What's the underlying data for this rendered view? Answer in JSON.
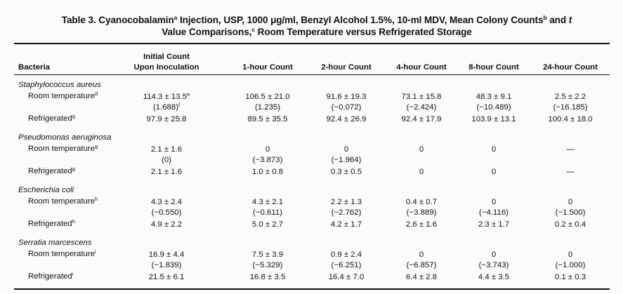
{
  "table": {
    "title_line1_a": "Table 3. Cyanocobalamin",
    "title_sup_a": "a",
    "title_line1_b": " Injection, USP, 1000 μg/ml, Benzyl Alcohol 1.5%, 10-ml MDV, Mean Colony Counts",
    "title_sup_b": "b",
    "title_line1_c": " and ",
    "title_line1_t": "t",
    "title_line2_a": "Value Comparisons,",
    "title_sup_c": "c",
    "title_line2_b": " Room Temperature  versus Refrigerated Storage",
    "headers": {
      "bacteria": "Bacteria",
      "initial_line1": "Initial Count",
      "initial_line2": "Upon Inoculation",
      "h1": "1-hour Count",
      "h2": "2-hour Count",
      "h4": "4-hour Count",
      "h8": "8-hour Count",
      "h24": "24-hour Count"
    },
    "groups": [
      {
        "organism": "Staphylococcus aureus",
        "rows": [
          {
            "label": "Room temperature",
            "sup": "d",
            "values": [
              "114.3 ± 13.5",
              "106.5 ± 21.0",
              "91.6 ± 19.3",
              "73.1 ± 15.8",
              "48.3 ± 9.1",
              "2.5 ± 2.2"
            ],
            "value_sup": "e",
            "t": [
              "(1.688)",
              "(1.235)",
              "(−0.072)",
              "(−2.424)",
              "(−10.489)",
              "(−16.185)"
            ],
            "t_sup": "f"
          },
          {
            "label": "Refrigerated",
            "sup": "g",
            "values": [
              "97.9 ± 25.8",
              "89.5 ± 35.5",
              "92.4 ± 26.9",
              "92.4 ± 17.9",
              "103.9 ± 13.1",
              "100.4 ± 18.0"
            ]
          }
        ]
      },
      {
        "organism": "Pseudomonas aeruginosa",
        "rows": [
          {
            "label": "Room temperature",
            "sup": "g",
            "values": [
              "2.1 ± 1.6",
              "0",
              "0",
              "0",
              "0",
              "—"
            ],
            "t": [
              "(0)",
              "(−3.873)",
              "(−1.964)",
              "",
              "",
              ""
            ]
          },
          {
            "label": "Refrigerated",
            "sup": "g",
            "values": [
              "2.1 ± 1.6",
              "1.0 ± 0.8",
              "0.3 ± 0.5",
              "0",
              "0",
              "—"
            ]
          }
        ]
      },
      {
        "organism": "Escherichia coli",
        "rows": [
          {
            "label": "Room temperature",
            "sup": "h",
            "values": [
              "4.3 ± 2.4",
              "4.3 ± 2.1",
              "2.2 ± 1.3",
              "0.4 ± 0.7",
              "0",
              "0"
            ],
            "t": [
              "(−0.550)",
              "(−0.611)",
              "(−2.762)",
              "(−3.889)",
              "(−4.116)",
              "(−1.500)"
            ]
          },
          {
            "label": "Refrigerated",
            "sup": "h",
            "values": [
              "4.9 ± 2.2",
              "5.0 ± 2.7",
              "4.2 ± 1.7",
              "2.6 ± 1.6",
              "2.3 ± 1.7",
              "0.2 ± 0.4"
            ]
          }
        ]
      },
      {
        "organism": "Serratia marcescens",
        "rows": [
          {
            "label": "Room temperature",
            "sup": "i",
            "values": [
              "16.9 ± 4.4",
              "7.5 ± 3.9",
              "0.9 ± 2.4",
              "0",
              "0",
              "0"
            ],
            "t": [
              "(−1.839)",
              "(−5.329)",
              "(−6.251)",
              "(−6.857)",
              "(−3.743)",
              "(−1.000)"
            ]
          },
          {
            "label": "Refrigerated",
            "sup": "i",
            "values": [
              "21.5 ± 6.1",
              "16.8 ± 3.5",
              "16.4 ± 7.0",
              "6.4 ± 2.8",
              "4.4 ± 3.5",
              "0.1 ± 0.3"
            ]
          }
        ]
      }
    ]
  }
}
